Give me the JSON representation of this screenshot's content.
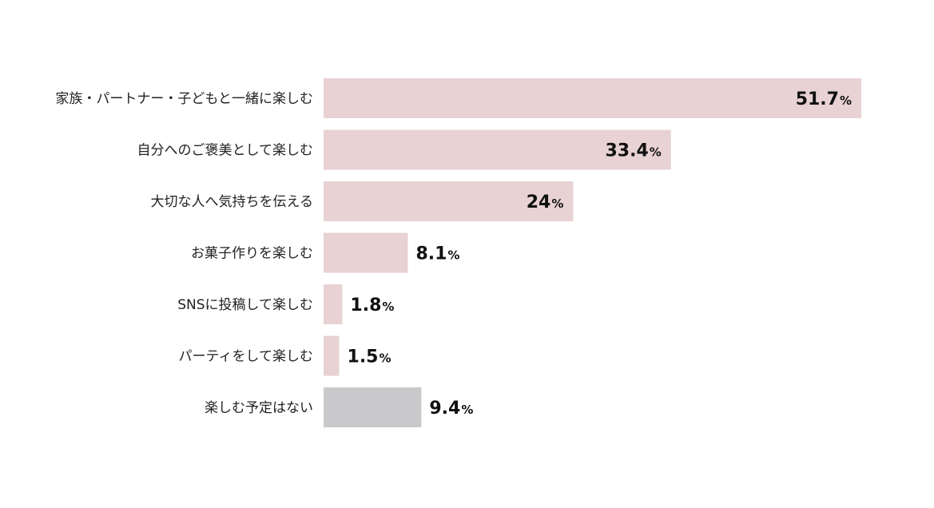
{
  "chart_data": {
    "type": "bar",
    "orientation": "horizontal",
    "categories": [
      "家族・パートナー・子どもと一緒に楽しむ",
      "自分へのご褒美として楽しむ",
      "大切な人へ気持ちを伝える",
      "お菓子作りを楽しむ",
      "SNSに投稿して楽しむ",
      "パーティをして楽しむ",
      "楽しむ予定はない"
    ],
    "values": [
      51.7,
      33.4,
      24,
      8.1,
      1.8,
      1.5,
      9.4
    ],
    "value_labels": [
      "51.7",
      "33.4",
      "24",
      "8.1",
      "1.8",
      "1.5",
      "9.4"
    ],
    "unit": "%",
    "xlim": [
      0,
      51.7
    ],
    "colors": {
      "default_bar": "#e8d2d4",
      "highlight_bar": "#c9c9cb",
      "highlight_index": 6
    },
    "grid": false,
    "legend": "none"
  }
}
